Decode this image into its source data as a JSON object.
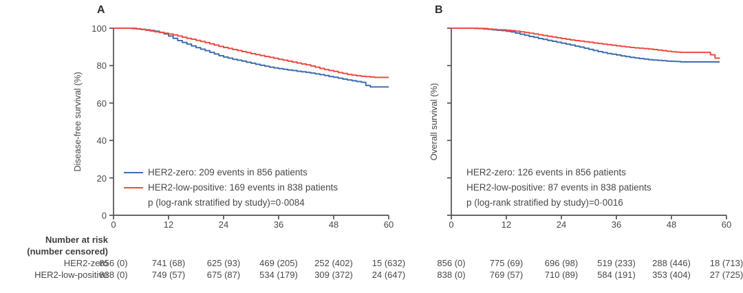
{
  "colors": {
    "her2_zero": "#3e6dae",
    "her2_low": "#ee4a42",
    "axis": "#515153",
    "text": "#48484a"
  },
  "figure": {
    "panels": [
      {
        "label": "A",
        "y_axis_title": "Disease-free survival (%)",
        "x_tick_labels": [
          "0",
          "12",
          "24",
          "36",
          "48",
          "60"
        ],
        "y_tick_labels": [
          "100",
          "80",
          "60",
          "40",
          "20",
          "0"
        ],
        "show_y_tick_labels": true,
        "legend": {
          "entries": [
            {
              "series": "her2_zero",
              "swatch": true,
              "label": "HER2-zero: 209 events in 856 patients"
            },
            {
              "series": "her2_low",
              "swatch": true,
              "label": "HER2-low-positive: 169 events in 838 patients"
            }
          ],
          "p_value_line": "p (log-rank stratified by study)=0·0084"
        }
      },
      {
        "label": "B",
        "y_axis_title": "Overall survival (%)",
        "x_tick_labels": [
          "0",
          "12",
          "24",
          "36",
          "48",
          "60"
        ],
        "y_tick_labels": [],
        "show_y_tick_labels": false,
        "legend": {
          "entries": [
            {
              "series": "her2_zero",
              "swatch": false,
              "label": "HER2-zero: 126 events in 856 patients"
            },
            {
              "series": "her2_low",
              "swatch": false,
              "label": "HER2-low-positive: 87 events in 838 patients"
            }
          ],
          "p_value_line": "p (log-rank stratified by study)=0·0016"
        }
      }
    ]
  },
  "risk_table": {
    "header_line1": "Number at risk",
    "header_line2": "(number censored)",
    "rows": [
      {
        "label": "HER2-zero",
        "panelA": [
          "856 (0)",
          "741 (68)",
          "625 (93)",
          "469 (205)",
          "252 (402)",
          "15 (632)"
        ],
        "panelB": [
          "856 (0)",
          "775 (69)",
          "696 (98)",
          "519 (233)",
          "288 (446)",
          "18 (713)"
        ]
      },
      {
        "label": "HER2-low-positive",
        "panelA": [
          "838 (0)",
          "749 (57)",
          "675 (87)",
          "534 (179)",
          "309 (372)",
          "24 (647)"
        ],
        "panelB": [
          "838 (0)",
          "769 (57)",
          "710 (89)",
          "584 (191)",
          "353 (404)",
          "27 (725)"
        ]
      }
    ]
  },
  "chart_data": [
    {
      "type": "line",
      "subtype": "kaplan-meier-step",
      "panel": "A",
      "title": "Disease-free survival",
      "xlabel": "",
      "ylabel": "Disease-free survival (%)",
      "xlim": [
        0,
        60
      ],
      "ylim": [
        0,
        100
      ],
      "x_ticks": [
        0,
        12,
        24,
        36,
        48,
        60
      ],
      "y_ticks": [
        0,
        20,
        40,
        60,
        80,
        100
      ],
      "grid": false,
      "legend_position": "inside-bottom-left",
      "series": [
        {
          "name": "HER2-zero",
          "color_key": "her2_zero",
          "points": [
            [
              0,
              100
            ],
            [
              3,
              100
            ],
            [
              4,
              99.8
            ],
            [
              5,
              99.6
            ],
            [
              6,
              99.4
            ],
            [
              7,
              99.1
            ],
            [
              8,
              98.8
            ],
            [
              9,
              98.4
            ],
            [
              10,
              97.8
            ],
            [
              11,
              96.9
            ],
            [
              12,
              95.8
            ],
            [
              13,
              94.6
            ],
            [
              14,
              93.4
            ],
            [
              15,
              92.4
            ],
            [
              16,
              91.5
            ],
            [
              17,
              90.5
            ],
            [
              18,
              89.6
            ],
            [
              19,
              88.8
            ],
            [
              20,
              88.0
            ],
            [
              21,
              87.1
            ],
            [
              22,
              86.2
            ],
            [
              23,
              85.3
            ],
            [
              24,
              84.6
            ],
            [
              25,
              84.0
            ],
            [
              26,
              83.4
            ],
            [
              27,
              82.9
            ],
            [
              28,
              82.4
            ],
            [
              29,
              81.8
            ],
            [
              30,
              81.3
            ],
            [
              31,
              80.7
            ],
            [
              32,
              80.2
            ],
            [
              33,
              79.7
            ],
            [
              34,
              79.2
            ],
            [
              35,
              78.8
            ],
            [
              36,
              78.4
            ],
            [
              37,
              78.0
            ],
            [
              38,
              77.7
            ],
            [
              39,
              77.4
            ],
            [
              40,
              77.0
            ],
            [
              41,
              76.7
            ],
            [
              42,
              76.4
            ],
            [
              43,
              76.0
            ],
            [
              44,
              75.6
            ],
            [
              45,
              75.2
            ],
            [
              46,
              74.7
            ],
            [
              47,
              74.2
            ],
            [
              48,
              73.8
            ],
            [
              49,
              73.3
            ],
            [
              50,
              72.8
            ],
            [
              51,
              72.3
            ],
            [
              52,
              71.9
            ],
            [
              53,
              71.5
            ],
            [
              54,
              71.1
            ],
            [
              55,
              69.4
            ],
            [
              56,
              68.6
            ],
            [
              60,
              68.6
            ]
          ]
        },
        {
          "name": "HER2-low-positive",
          "color_key": "her2_low",
          "points": [
            [
              0,
              100
            ],
            [
              4,
              100
            ],
            [
              5,
              99.7
            ],
            [
              6,
              99.3
            ],
            [
              7,
              98.9
            ],
            [
              8,
              98.5
            ],
            [
              9,
              98.1
            ],
            [
              10,
              97.7
            ],
            [
              11,
              97.3
            ],
            [
              12,
              96.9
            ],
            [
              13,
              96.4
            ],
            [
              14,
              95.8
            ],
            [
              15,
              95.2
            ],
            [
              16,
              94.6
            ],
            [
              17,
              94.1
            ],
            [
              18,
              93.5
            ],
            [
              19,
              92.9
            ],
            [
              20,
              92.3
            ],
            [
              21,
              91.6
            ],
            [
              22,
              91.0
            ],
            [
              23,
              90.3
            ],
            [
              24,
              89.7
            ],
            [
              25,
              89.2
            ],
            [
              26,
              88.6
            ],
            [
              27,
              88.1
            ],
            [
              28,
              87.5
            ],
            [
              29,
              87.0
            ],
            [
              30,
              86.4
            ],
            [
              31,
              85.9
            ],
            [
              32,
              85.4
            ],
            [
              33,
              84.9
            ],
            [
              34,
              84.4
            ],
            [
              35,
              83.9
            ],
            [
              36,
              83.4
            ],
            [
              37,
              82.9
            ],
            [
              38,
              82.4
            ],
            [
              39,
              81.9
            ],
            [
              40,
              81.4
            ],
            [
              41,
              80.9
            ],
            [
              42,
              80.4
            ],
            [
              43,
              79.8
            ],
            [
              44,
              79.2
            ],
            [
              45,
              78.5
            ],
            [
              46,
              77.9
            ],
            [
              47,
              77.4
            ],
            [
              48,
              76.9
            ],
            [
              49,
              76.3
            ],
            [
              50,
              75.8
            ],
            [
              51,
              75.3
            ],
            [
              52,
              74.9
            ],
            [
              53,
              74.6
            ],
            [
              54,
              74.3
            ],
            [
              55,
              74.1
            ],
            [
              56,
              73.9
            ],
            [
              57,
              73.7
            ],
            [
              60,
              73.7
            ]
          ]
        }
      ]
    },
    {
      "type": "line",
      "subtype": "kaplan-meier-step",
      "panel": "B",
      "title": "Overall survival",
      "xlabel": "",
      "ylabel": "Overall survival (%)",
      "xlim": [
        0,
        60
      ],
      "ylim": [
        0,
        100
      ],
      "x_ticks": [
        0,
        12,
        24,
        36,
        48,
        60
      ],
      "y_ticks": [
        0,
        20,
        40,
        60,
        80,
        100
      ],
      "grid": false,
      "legend_position": "inside-bottom-left",
      "series": [
        {
          "name": "HER2-zero",
          "color_key": "her2_zero",
          "points": [
            [
              0,
              100
            ],
            [
              4,
              100
            ],
            [
              5,
              99.9
            ],
            [
              6,
              99.8
            ],
            [
              7,
              99.6
            ],
            [
              8,
              99.4
            ],
            [
              9,
              99.1
            ],
            [
              10,
              98.9
            ],
            [
              11,
              98.7
            ],
            [
              12,
              98.4
            ],
            [
              13,
              98.0
            ],
            [
              14,
              97.4
            ],
            [
              15,
              96.8
            ],
            [
              16,
              96.2
            ],
            [
              17,
              95.6
            ],
            [
              18,
              95.1
            ],
            [
              19,
              94.5
            ],
            [
              20,
              94.0
            ],
            [
              21,
              93.5
            ],
            [
              22,
              93.0
            ],
            [
              23,
              92.5
            ],
            [
              24,
              92.0
            ],
            [
              25,
              91.5
            ],
            [
              26,
              91.0
            ],
            [
              27,
              90.4
            ],
            [
              28,
              89.9
            ],
            [
              29,
              89.3
            ],
            [
              30,
              88.7
            ],
            [
              31,
              88.1
            ],
            [
              32,
              87.5
            ],
            [
              33,
              87.0
            ],
            [
              34,
              86.5
            ],
            [
              35,
              86.1
            ],
            [
              36,
              85.7
            ],
            [
              37,
              85.2
            ],
            [
              38,
              84.8
            ],
            [
              39,
              84.4
            ],
            [
              40,
              84.1
            ],
            [
              41,
              83.8
            ],
            [
              42,
              83.5
            ],
            [
              43,
              83.2
            ],
            [
              44,
              83.0
            ],
            [
              45,
              82.8
            ],
            [
              46,
              82.6
            ],
            [
              47,
              82.4
            ],
            [
              48,
              82.3
            ],
            [
              49,
              82.2
            ],
            [
              50,
              82.0
            ],
            [
              58.5,
              82.0
            ]
          ]
        },
        {
          "name": "HER2-low-positive",
          "color_key": "her2_low",
          "points": [
            [
              0,
              100
            ],
            [
              5,
              100
            ],
            [
              6,
              99.9
            ],
            [
              7,
              99.8
            ],
            [
              8,
              99.6
            ],
            [
              9,
              99.4
            ],
            [
              10,
              99.2
            ],
            [
              11,
              99.1
            ],
            [
              12,
              98.9
            ],
            [
              13,
              98.7
            ],
            [
              14,
              98.4
            ],
            [
              15,
              98.1
            ],
            [
              16,
              97.7
            ],
            [
              17,
              97.3
            ],
            [
              18,
              96.9
            ],
            [
              19,
              96.5
            ],
            [
              20,
              96.1
            ],
            [
              21,
              95.7
            ],
            [
              22,
              95.3
            ],
            [
              23,
              94.9
            ],
            [
              24,
              94.5
            ],
            [
              25,
              94.1
            ],
            [
              26,
              93.7
            ],
            [
              27,
              93.4
            ],
            [
              28,
              93.1
            ],
            [
              29,
              92.8
            ],
            [
              30,
              92.5
            ],
            [
              31,
              92.1
            ],
            [
              32,
              91.8
            ],
            [
              33,
              91.5
            ],
            [
              34,
              91.2
            ],
            [
              35,
              90.9
            ],
            [
              36,
              90.6
            ],
            [
              37,
              90.3
            ],
            [
              38,
              90.0
            ],
            [
              39,
              89.7
            ],
            [
              40,
              89.5
            ],
            [
              41,
              89.3
            ],
            [
              42,
              89.1
            ],
            [
              43,
              88.9
            ],
            [
              44,
              88.6
            ],
            [
              45,
              88.3
            ],
            [
              46,
              88.0
            ],
            [
              47,
              87.7
            ],
            [
              48,
              87.4
            ],
            [
              49,
              87.2
            ],
            [
              50,
              87.1
            ],
            [
              56,
              87.1
            ],
            [
              56.5,
              85.8
            ],
            [
              57.5,
              84.0
            ],
            [
              58.5,
              83.9
            ]
          ]
        }
      ]
    }
  ]
}
